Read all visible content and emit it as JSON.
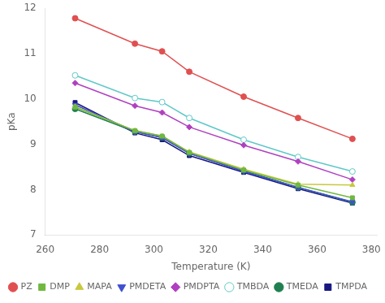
{
  "chart_data": {
    "type": "line",
    "x_label": "Temperature (K)",
    "y_label": "pKa",
    "x": [
      271,
      293,
      303,
      313,
      333,
      353,
      373
    ],
    "series": [
      {
        "name": "PZ",
        "color": "#e05050",
        "marker": "circle",
        "values": [
          11.78,
          11.22,
          11.05,
          10.6,
          10.05,
          9.58,
          9.12
        ]
      },
      {
        "name": "DMP",
        "color": "#70b840",
        "marker": "square",
        "values": [
          9.82,
          9.3,
          9.18,
          8.82,
          8.43,
          8.1,
          7.82
        ]
      },
      {
        "name": "MAPA",
        "color": "#c8c840",
        "marker": "triangle_up",
        "values": [
          9.83,
          9.3,
          9.18,
          8.83,
          8.45,
          8.12,
          8.1
        ]
      },
      {
        "name": "PMDETA",
        "color": "#4050d0",
        "marker": "triangle_down",
        "values": [
          9.87,
          9.28,
          9.15,
          8.8,
          8.4,
          8.05,
          7.73
        ]
      },
      {
        "name": "PMDPTA",
        "color": "#b040c0",
        "marker": "diamond",
        "values": [
          10.35,
          9.85,
          9.7,
          9.38,
          8.98,
          8.62,
          8.22
        ]
      },
      {
        "name": "TMBDA",
        "color": "#60c8c8",
        "marker": "open_circle",
        "values": [
          10.52,
          10.02,
          9.93,
          9.58,
          9.1,
          8.72,
          8.4
        ]
      },
      {
        "name": "TMEDA",
        "color": "#208050",
        "marker": "circle",
        "values": [
          9.78,
          9.28,
          9.15,
          8.8,
          8.42,
          8.05,
          7.72
        ]
      },
      {
        "name": "TMPDA",
        "color": "#181880",
        "marker": "square",
        "values": [
          9.92,
          9.25,
          9.1,
          8.75,
          8.38,
          8.02,
          7.7
        ]
      }
    ],
    "line_style": "solid",
    "xlim": [
      260,
      382
    ],
    "ylim": [
      7,
      12
    ],
    "xticks": [
      260,
      280,
      300,
      320,
      340,
      360,
      380
    ],
    "yticks": [
      7,
      8,
      9,
      10,
      11,
      12
    ],
    "grid": false,
    "legend": "lower left"
  }
}
